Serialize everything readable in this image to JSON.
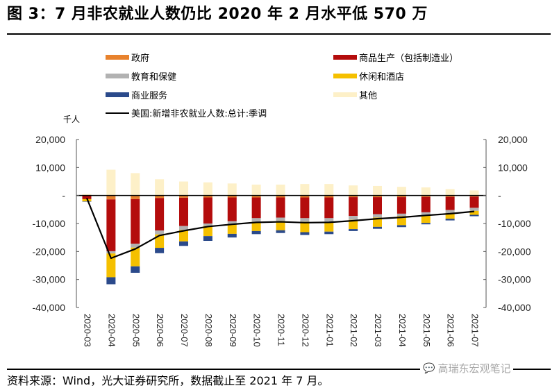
{
  "title": "图 3：7 月非农就业人数仍比 2020 年 2 月水平低 570 万",
  "source": "资料来源：Wind，光大证券研究所，数据截止至 2021 年 7 月。",
  "watermark": {
    "text": "高瑞东宏观笔记",
    "icon": "wechat-icon"
  },
  "chart_data": {
    "type": "bar",
    "stacked": true,
    "title": "图 3：7 月非农就业人数仍比 2020 年 2 月水平低 570 万",
    "unit_label": "千人",
    "xlabel": "",
    "ylabel": "千人",
    "ylim": [
      -40000,
      20000
    ],
    "yticks": [
      20000,
      10000,
      0,
      -10000,
      -20000,
      -30000,
      -40000
    ],
    "ytick_labels": [
      "20,000",
      "10,000",
      "-",
      "-10,000",
      "-20,000",
      "-30,000",
      "-40,000"
    ],
    "secondary_y": {
      "ylim": [
        -40000,
        20000
      ],
      "ytick_labels": [
        "20,000",
        "10,000",
        "-",
        "-10,000",
        "-20,000",
        "-30,000",
        "-40,000"
      ]
    },
    "grid": false,
    "legend_position": "top",
    "categories": [
      "2020-03",
      "2020-04",
      "2020-05",
      "2020-06",
      "2020-07",
      "2020-08",
      "2020-09",
      "2020-10",
      "2020-11",
      "2020-12",
      "2021-01",
      "2021-02",
      "2021-03",
      "2021-04",
      "2021-05",
      "2021-06",
      "2021-07"
    ],
    "series": [
      {
        "name": "政府",
        "color": "#E8822D",
        "kind": "bar",
        "values": [
          0,
          -1400,
          -1300,
          -900,
          -800,
          -700,
          -700,
          -700,
          -700,
          -700,
          -700,
          -600,
          -600,
          -600,
          -500,
          -500,
          -400
        ]
      },
      {
        "name": "商品生产（包括制造业）",
        "color": "#B40C0C",
        "kind": "bar",
        "values": [
          -1300,
          -18500,
          -15900,
          -11600,
          -10100,
          -9300,
          -8500,
          -7400,
          -7200,
          -7400,
          -7400,
          -6700,
          -6100,
          -5900,
          -5500,
          -4700,
          -4000
        ]
      },
      {
        "name": "教育和保健",
        "color": "#B2B2B2",
        "kind": "bar",
        "values": [
          0,
          -800,
          -1400,
          -1400,
          -1400,
          -900,
          -1000,
          -1300,
          -1200,
          -1300,
          -1300,
          -1400,
          -1200,
          -900,
          -1100,
          -1100,
          -1100
        ]
      },
      {
        "name": "休闲和酒店",
        "color": "#F5C000",
        "kind": "bar",
        "values": [
          -800,
          -8500,
          -6700,
          -4800,
          -4100,
          -3600,
          -3500,
          -3300,
          -3300,
          -3700,
          -3500,
          -3300,
          -3300,
          -3200,
          -2700,
          -2000,
          -1400
        ]
      },
      {
        "name": "商业服务",
        "color": "#2B4A8B",
        "kind": "bar",
        "values": [
          -100,
          -2500,
          -2300,
          -1900,
          -1600,
          -1700,
          -1300,
          -1100,
          -1000,
          -1000,
          -900,
          -700,
          -700,
          -700,
          -500,
          -600,
          -500
        ]
      },
      {
        "name": "其他",
        "color": "#FDF0C8",
        "kind": "bar",
        "values": [
          500,
          9200,
          8000,
          5800,
          5000,
          4700,
          4300,
          3900,
          3900,
          4100,
          4100,
          3600,
          3400,
          3100,
          2900,
          2300,
          1800
        ]
      },
      {
        "name": "美国:新增非农就业人数:总计:季调",
        "color": "#000000",
        "kind": "line",
        "values": [
          -900,
          -22400,
          -19100,
          -14300,
          -12600,
          -11100,
          -10300,
          -9600,
          -9400,
          -9700,
          -9600,
          -9000,
          -8300,
          -7800,
          -7100,
          -6500,
          -5700
        ]
      }
    ]
  }
}
